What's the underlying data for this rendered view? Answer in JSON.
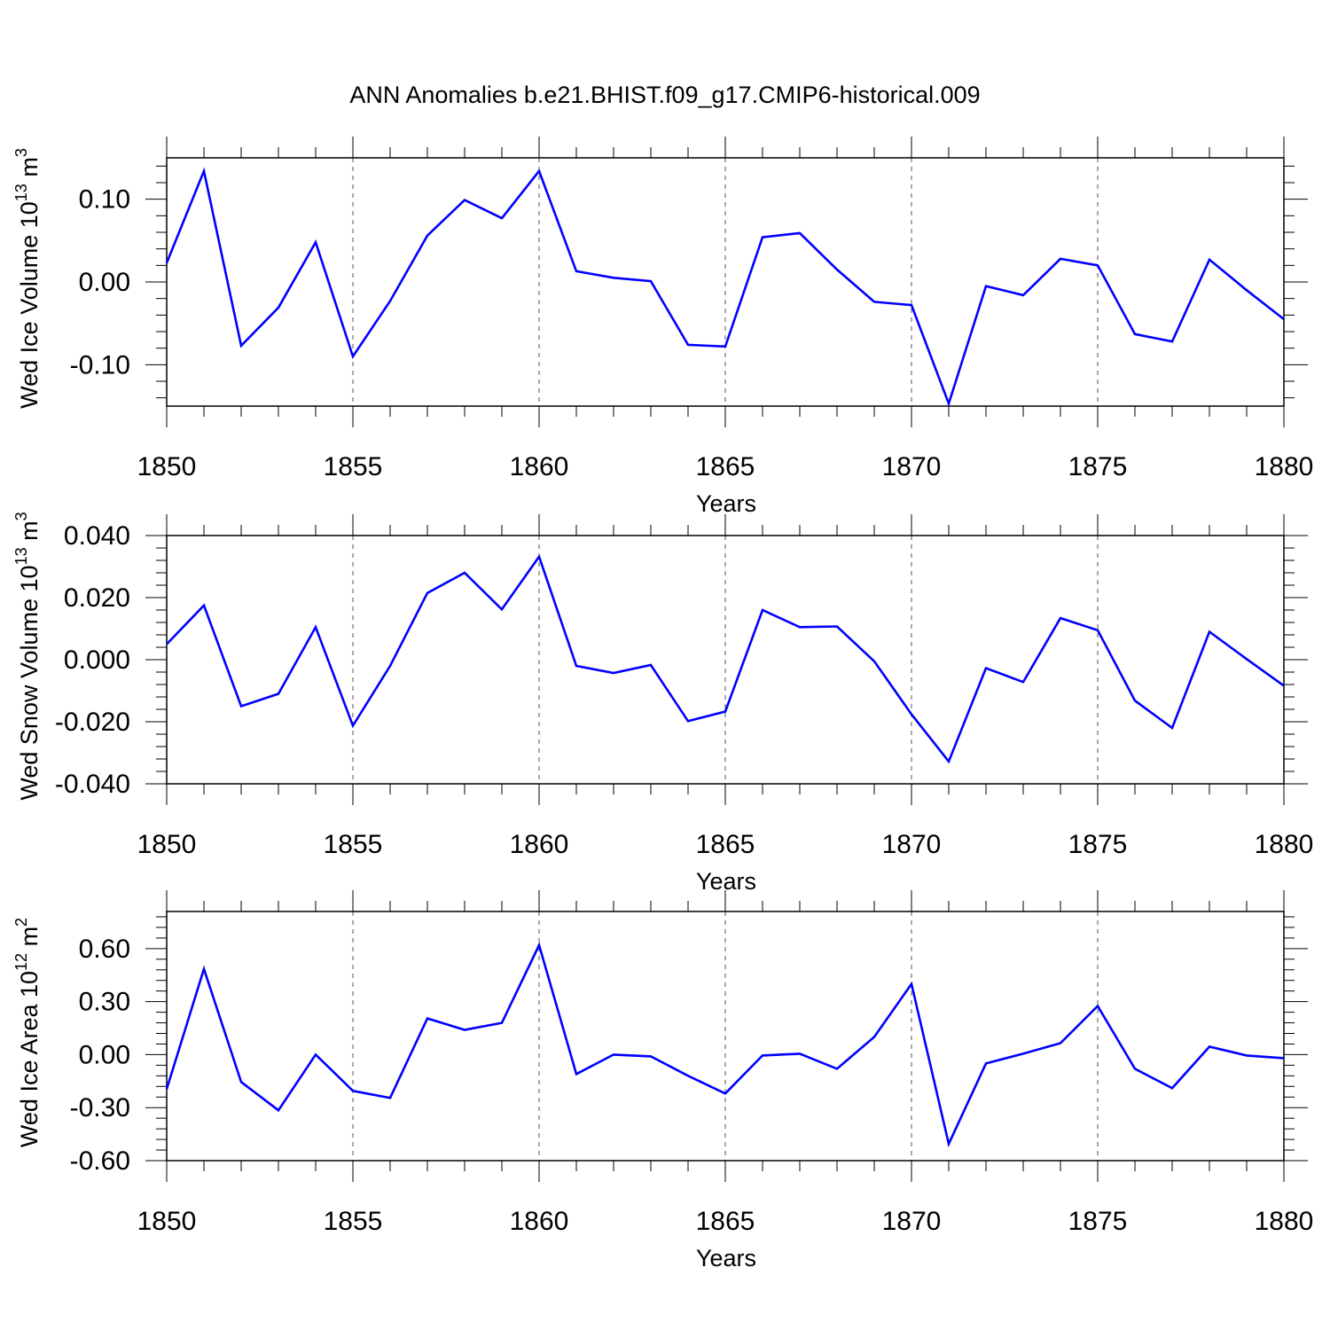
{
  "title": "ANN Anomalies b.e21.BHIST.f09_g17.CMIP6-historical.009",
  "line_color": "#0000ff",
  "chart_data": [
    {
      "type": "line",
      "xlabel": "Years",
      "ylabel": {
        "main": "Wed Ice Volume 10",
        "exp": "13",
        "unit": " m",
        "unit_exp": "3"
      },
      "xlim": [
        1850,
        1880
      ],
      "ylim": [
        -0.15,
        0.15
      ],
      "xticks": [
        "1850",
        "1855",
        "1860",
        "1865",
        "1870",
        "1875",
        "1880"
      ],
      "yticks": [
        {
          "value": 0.1,
          "label": "0.10"
        },
        {
          "value": 0.0,
          "label": "0.00"
        },
        {
          "value": -0.1,
          "label": "-0.10"
        }
      ],
      "x": [
        1850,
        1851,
        1852,
        1853,
        1854,
        1855,
        1856,
        1857,
        1858,
        1859,
        1860,
        1861,
        1862,
        1863,
        1864,
        1865,
        1866,
        1867,
        1868,
        1869,
        1870,
        1871,
        1872,
        1873,
        1874,
        1875,
        1876,
        1877,
        1878,
        1879,
        1880
      ],
      "y": [
        0.023,
        0.134,
        -0.077,
        -0.031,
        0.048,
        -0.09,
        -0.023,
        0.056,
        0.099,
        0.077,
        0.134,
        0.013,
        0.005,
        0.001,
        -0.076,
        -0.078,
        0.054,
        0.059,
        0.015,
        -0.024,
        -0.028,
        -0.147,
        -0.005,
        -0.016,
        0.028,
        0.02,
        -0.063,
        -0.072,
        0.027,
        -0.01,
        -0.045
      ]
    },
    {
      "type": "line",
      "xlabel": "Years",
      "ylabel": {
        "main": "Wed Snow Volume 10",
        "exp": "13",
        "unit": " m",
        "unit_exp": "3"
      },
      "xlim": [
        1850,
        1880
      ],
      "ylim": [
        -0.04,
        0.04
      ],
      "xticks": [
        "1850",
        "1855",
        "1860",
        "1865",
        "1870",
        "1875",
        "1880"
      ],
      "yticks": [
        {
          "value": 0.04,
          "label": "0.040"
        },
        {
          "value": 0.02,
          "label": "0.020"
        },
        {
          "value": 0.0,
          "label": "0.000"
        },
        {
          "value": -0.02,
          "label": "-0.020"
        },
        {
          "value": -0.04,
          "label": "-0.040"
        }
      ],
      "x": [
        1850,
        1851,
        1852,
        1853,
        1854,
        1855,
        1856,
        1857,
        1858,
        1859,
        1860,
        1861,
        1862,
        1863,
        1864,
        1865,
        1866,
        1867,
        1868,
        1869,
        1870,
        1871,
        1872,
        1873,
        1874,
        1875,
        1876,
        1877,
        1878,
        1879,
        1880
      ],
      "y": [
        0.005,
        0.0175,
        -0.015,
        -0.011,
        0.0105,
        -0.0213,
        -0.002,
        0.0215,
        0.028,
        0.0162,
        0.0332,
        -0.002,
        -0.0043,
        -0.0017,
        -0.0198,
        -0.0167,
        0.016,
        0.0105,
        0.0107,
        -0.0005,
        -0.0176,
        -0.0328,
        -0.0027,
        -0.0072,
        0.0134,
        0.0095,
        -0.0132,
        -0.022,
        0.009,
        0.0002,
        -0.0084
      ]
    },
    {
      "type": "line",
      "xlabel": "Years",
      "ylabel": {
        "main": "Wed Ice Area 10",
        "exp": "12",
        "unit": " m",
        "unit_exp": "2"
      },
      "xlim": [
        1850,
        1880
      ],
      "ylim": [
        -0.6,
        0.81
      ],
      "xticks": [
        "1850",
        "1855",
        "1860",
        "1865",
        "1870",
        "1875",
        "1880"
      ],
      "yticks": [
        {
          "value": 0.6,
          "label": "0.60"
        },
        {
          "value": 0.3,
          "label": "0.30"
        },
        {
          "value": 0.0,
          "label": "0.00"
        },
        {
          "value": -0.3,
          "label": "-0.30"
        },
        {
          "value": -0.6,
          "label": "-0.60"
        }
      ],
      "x": [
        1850,
        1851,
        1852,
        1853,
        1854,
        1855,
        1856,
        1857,
        1858,
        1859,
        1860,
        1861,
        1862,
        1863,
        1864,
        1865,
        1866,
        1867,
        1868,
        1869,
        1870,
        1871,
        1872,
        1873,
        1874,
        1875,
        1876,
        1877,
        1878,
        1879,
        1880
      ],
      "y": [
        -0.195,
        0.485,
        -0.155,
        -0.315,
        0.0,
        -0.205,
        -0.245,
        0.205,
        0.14,
        0.18,
        0.62,
        -0.11,
        0.0,
        -0.01,
        -0.12,
        -0.22,
        -0.005,
        0.005,
        -0.08,
        0.1,
        0.4,
        -0.505,
        -0.05,
        0.005,
        0.065,
        0.275,
        -0.08,
        -0.19,
        0.045,
        -0.005,
        -0.02
      ]
    }
  ]
}
